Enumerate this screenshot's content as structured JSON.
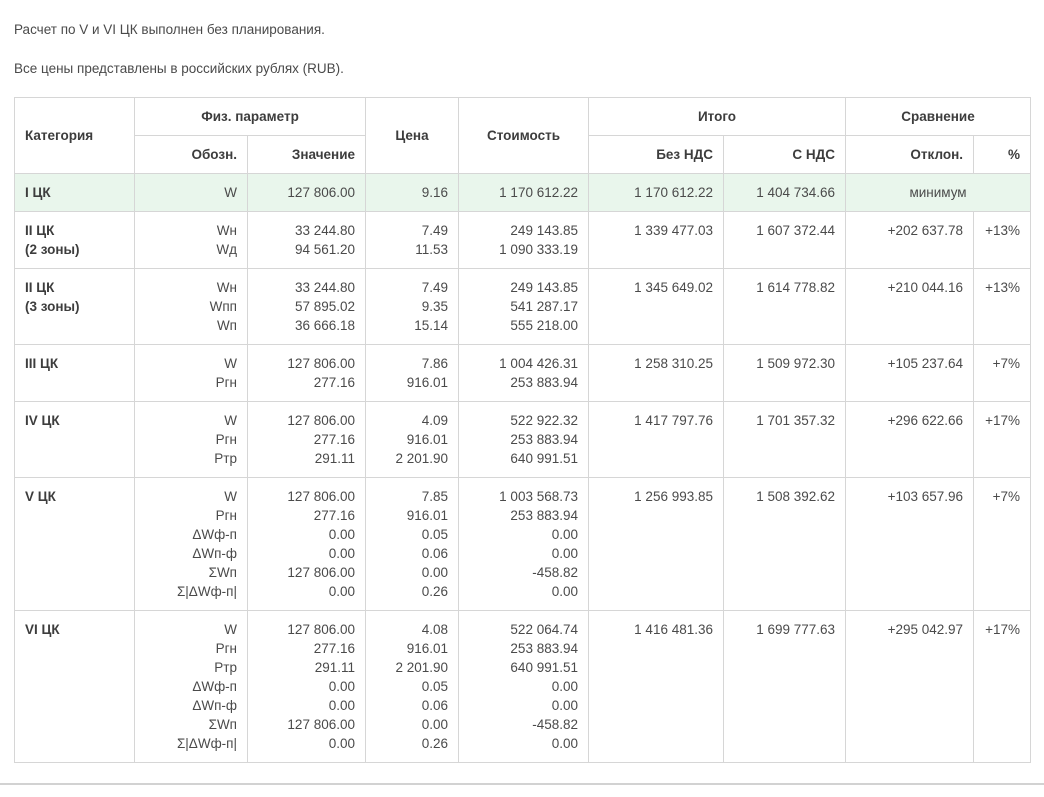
{
  "notes": {
    "line1": "Расчет по V и VI ЦК выполнен без планирования.",
    "line2": "Все цены представлены в российских рублях (RUB)."
  },
  "colors": {
    "highlight_row": "#e9f6ec",
    "border": "#d6d6d6",
    "text": "#4a4a4a"
  },
  "table": {
    "headers": {
      "category": "Категория",
      "phys_param": "Физ. параметр",
      "designation": "Обозн.",
      "value": "Значение",
      "price": "Цена",
      "cost": "Стоимость",
      "total": "Итого",
      "no_vat": "Без НДС",
      "with_vat": "С НДС",
      "comparison": "Сравнение",
      "deviation": "Отклон.",
      "percent": "%"
    },
    "rows": [
      {
        "category": "I ЦК",
        "highlight": true,
        "params": [
          {
            "designation": "W",
            "value": "127 806.00",
            "price": "9.16",
            "cost": "1 170 612.22"
          }
        ],
        "no_vat": "1 170 612.22",
        "with_vat": "1 404 734.66",
        "comparison_label": "минимум"
      },
      {
        "category": "II ЦК\n(2 зоны)",
        "highlight": false,
        "params": [
          {
            "designation": "Wн",
            "value": "33 244.80",
            "price": "7.49",
            "cost": "249 143.85"
          },
          {
            "designation": "Wд",
            "value": "94 561.20",
            "price": "11.53",
            "cost": "1 090 333.19"
          }
        ],
        "no_vat": "1 339 477.03",
        "with_vat": "1 607 372.44",
        "deviation": "+202 637.78",
        "percent": "+13%"
      },
      {
        "category": "II ЦК\n(3 зоны)",
        "highlight": false,
        "params": [
          {
            "designation": "Wн",
            "value": "33 244.80",
            "price": "7.49",
            "cost": "249 143.85"
          },
          {
            "designation": "Wпп",
            "value": "57 895.02",
            "price": "9.35",
            "cost": "541 287.17"
          },
          {
            "designation": "Wп",
            "value": "36 666.18",
            "price": "15.14",
            "cost": "555 218.00"
          }
        ],
        "no_vat": "1 345 649.02",
        "with_vat": "1 614 778.82",
        "deviation": "+210 044.16",
        "percent": "+13%"
      },
      {
        "category": "III ЦК",
        "highlight": false,
        "params": [
          {
            "designation": "W",
            "value": "127 806.00",
            "price": "7.86",
            "cost": "1 004 426.31"
          },
          {
            "designation": "Ргн",
            "value": "277.16",
            "price": "916.01",
            "cost": "253 883.94"
          }
        ],
        "no_vat": "1 258 310.25",
        "with_vat": "1 509 972.30",
        "deviation": "+105 237.64",
        "percent": "+7%"
      },
      {
        "category": "IV ЦК",
        "highlight": false,
        "params": [
          {
            "designation": "W",
            "value": "127 806.00",
            "price": "4.09",
            "cost": "522 922.32"
          },
          {
            "designation": "Ргн",
            "value": "277.16",
            "price": "916.01",
            "cost": "253 883.94"
          },
          {
            "designation": "Ртр",
            "value": "291.11",
            "price": "2 201.90",
            "cost": "640 991.51"
          }
        ],
        "no_vat": "1 417 797.76",
        "with_vat": "1 701 357.32",
        "deviation": "+296 622.66",
        "percent": "+17%"
      },
      {
        "category": "V ЦК",
        "highlight": false,
        "params": [
          {
            "designation": "W",
            "value": "127 806.00",
            "price": "7.85",
            "cost": "1 003 568.73"
          },
          {
            "designation": "Ргн",
            "value": "277.16",
            "price": "916.01",
            "cost": "253 883.94"
          },
          {
            "designation": "ΔWф-п",
            "value": "0.00",
            "price": "0.05",
            "cost": "0.00"
          },
          {
            "designation": "ΔWп-ф",
            "value": "0.00",
            "price": "0.06",
            "cost": "0.00"
          },
          {
            "designation": "ΣWп",
            "value": "127 806.00",
            "price": "0.00",
            "cost": "-458.82"
          },
          {
            "designation": "Σ|ΔWф-п|",
            "value": "0.00",
            "price": "0.26",
            "cost": "0.00"
          }
        ],
        "no_vat": "1 256 993.85",
        "with_vat": "1 508 392.62",
        "deviation": "+103 657.96",
        "percent": "+7%"
      },
      {
        "category": "VI ЦК",
        "highlight": false,
        "params": [
          {
            "designation": "W",
            "value": "127 806.00",
            "price": "4.08",
            "cost": "522 064.74"
          },
          {
            "designation": "Ргн",
            "value": "277.16",
            "price": "916.01",
            "cost": "253 883.94"
          },
          {
            "designation": "Ртр",
            "value": "291.11",
            "price": "2 201.90",
            "cost": "640 991.51"
          },
          {
            "designation": "ΔWф-п",
            "value": "0.00",
            "price": "0.05",
            "cost": "0.00"
          },
          {
            "designation": "ΔWп-ф",
            "value": "0.00",
            "price": "0.06",
            "cost": "0.00"
          },
          {
            "designation": "ΣWп",
            "value": "127 806.00",
            "price": "0.00",
            "cost": "-458.82"
          },
          {
            "designation": "Σ|ΔWф-п|",
            "value": "0.00",
            "price": "0.26",
            "cost": "0.00"
          }
        ],
        "no_vat": "1 416 481.36",
        "with_vat": "1 699 777.63",
        "deviation": "+295 042.97",
        "percent": "+17%"
      }
    ]
  }
}
